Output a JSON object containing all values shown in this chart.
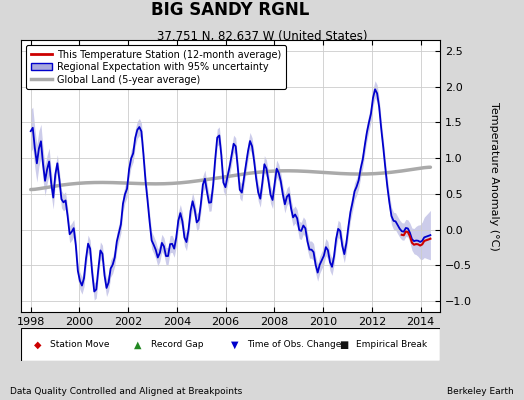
{
  "title": "BIG SANDY RGNL",
  "subtitle": "37.751 N, 82.637 W (United States)",
  "ylabel": "Temperature Anomaly (°C)",
  "xlabel_left": "Data Quality Controlled and Aligned at Breakpoints",
  "xlabel_right": "Berkeley Earth",
  "ylim": [
    -1.15,
    2.65
  ],
  "xlim": [
    1997.6,
    2014.8
  ],
  "yticks": [
    -1,
    -0.5,
    0,
    0.5,
    1,
    1.5,
    2,
    2.5
  ],
  "xticks": [
    1998,
    2000,
    2002,
    2004,
    2006,
    2008,
    2010,
    2012,
    2014
  ],
  "bg_color": "#d8d8d8",
  "plot_bg_color": "#ffffff",
  "regional_color": "#0000cc",
  "regional_fill_color": "#aaaadd",
  "station_color": "#cc0000",
  "global_color": "#aaaaaa",
  "global_lw": 2.5,
  "legend_fs": 7,
  "tick_fs": 8
}
